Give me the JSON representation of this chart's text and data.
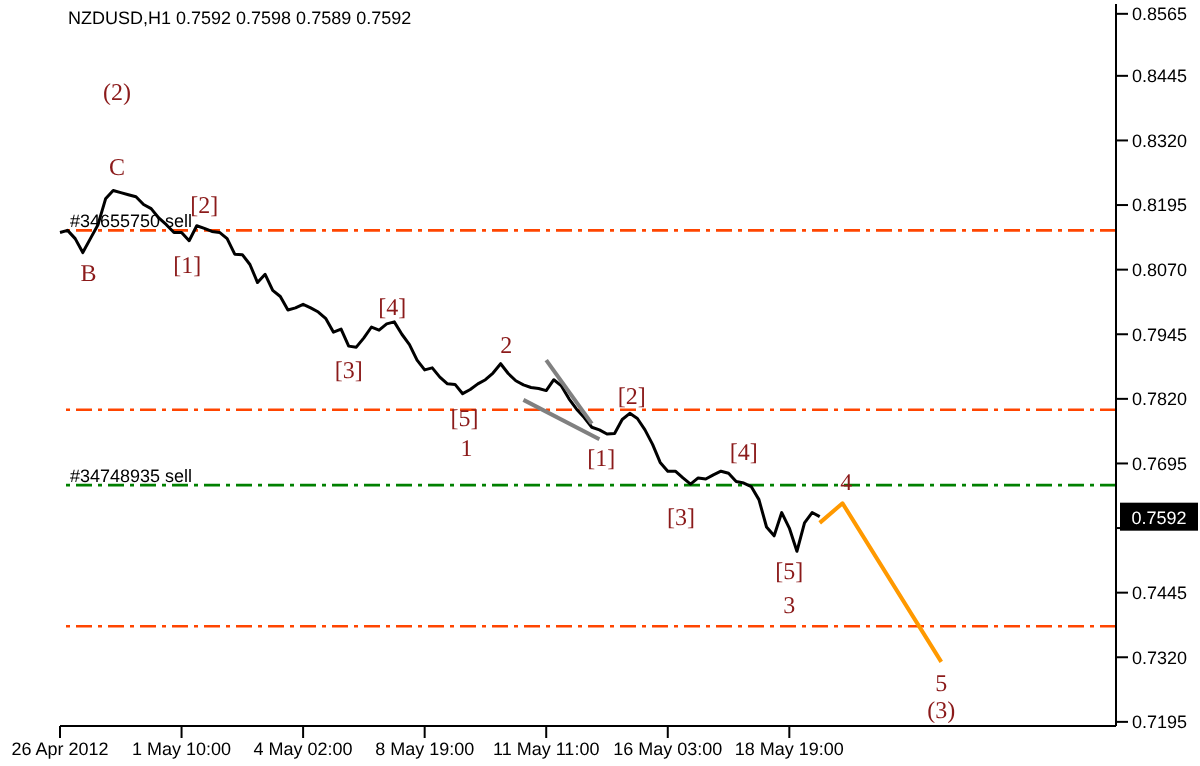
{
  "chart_data": {
    "type": "line",
    "title": "NZDUSD,H1  0.7592 0.7598 0.7589 0.7592",
    "marker": "none",
    "categories": [
      "26 Apr 2012",
      null,
      null,
      null,
      null,
      null,
      null,
      null,
      null,
      null,
      null,
      null,
      null,
      null,
      null,
      null,
      "1 May 10:00",
      null,
      null,
      null,
      null,
      null,
      null,
      null,
      null,
      null,
      null,
      null,
      null,
      null,
      null,
      null,
      "4 May 02:00",
      null,
      null,
      null,
      null,
      null,
      null,
      null,
      null,
      null,
      null,
      null,
      null,
      null,
      null,
      null,
      "8 May 19:00",
      null,
      null,
      null,
      null,
      null,
      null,
      null,
      null,
      null,
      null,
      null,
      null,
      null,
      null,
      null,
      "11 May 11:00",
      null,
      null,
      null,
      null,
      null,
      null,
      null,
      null,
      null,
      null,
      null,
      null,
      null,
      null,
      null,
      "16 May 03:00",
      null,
      null,
      null,
      null,
      null,
      null,
      null,
      null,
      null,
      null,
      null,
      null,
      null,
      null,
      null,
      "18 May 19:00",
      null,
      null,
      null,
      null,
      null,
      null,
      null,
      null,
      null,
      null,
      null,
      null,
      null,
      null,
      null,
      null,
      null,
      null,
      null,
      null,
      null,
      null,
      null,
      null,
      null,
      null,
      null,
      null,
      null,
      null,
      null,
      null,
      null,
      null,
      null,
      null,
      null,
      null,
      null,
      null,
      null,
      null,
      null
    ],
    "ylim": [
      0.7187,
      0.8584
    ],
    "yticks": [
      {
        "value": 0.8565,
        "label": "0.8565"
      },
      {
        "value": 0.8445,
        "label": "0.8445"
      },
      {
        "value": 0.832,
        "label": "0.8320"
      },
      {
        "value": 0.8195,
        "label": "0.8195"
      },
      {
        "value": 0.807,
        "label": "0.8070"
      },
      {
        "value": 0.7945,
        "label": "0.7945"
      },
      {
        "value": 0.782,
        "label": "0.7820"
      },
      {
        "value": 0.7695,
        "label": "0.7695"
      },
      {
        "value": 0.757,
        "label": null
      },
      {
        "value": 0.7445,
        "label": "0.7445"
      },
      {
        "value": 0.732,
        "label": "0.7320"
      },
      {
        "value": 0.7195,
        "label": "0.7195"
      }
    ],
    "series": [
      {
        "color": "#000000",
        "values": [
          0.8142,
          0.8146,
          0.813,
          0.8103,
          0.813,
          0.8157,
          0.8207,
          0.8223,
          0.8219,
          0.8215,
          0.8211,
          0.8196,
          0.8188,
          0.817,
          0.8157,
          0.8142,
          0.8142,
          0.8126,
          0.8155,
          0.815,
          0.8144,
          0.8142,
          0.813,
          0.81,
          0.8099,
          0.808,
          0.8045,
          0.8061,
          0.803,
          0.8018,
          0.7992,
          0.7996,
          0.8003,
          0.7996,
          0.7988,
          0.7975,
          0.7949,
          0.7955,
          0.7922,
          0.792,
          0.7938,
          0.7959,
          0.7953,
          0.7965,
          0.7969,
          0.7945,
          0.7925,
          0.7895,
          0.7876,
          0.788,
          0.7862,
          0.7849,
          0.7848,
          0.783,
          0.7838,
          0.7849,
          0.7857,
          0.787,
          0.7888,
          0.7869,
          0.7855,
          0.7847,
          0.7842,
          0.784,
          0.7836,
          0.7857,
          0.7845,
          0.782,
          0.78,
          0.7784,
          0.7765,
          0.776,
          0.7752,
          0.7753,
          0.778,
          0.7792,
          0.7782,
          0.776,
          0.7732,
          0.7697,
          0.768,
          0.768,
          0.7667,
          0.7655,
          0.7667,
          0.7665,
          0.7673,
          0.768,
          0.7676,
          0.766,
          0.7657,
          0.765,
          0.7625,
          0.7572,
          0.7555,
          0.76,
          0.757,
          0.7525,
          0.758,
          0.76,
          0.7592,
          null,
          null,
          null,
          null,
          null,
          null,
          null,
          null,
          null,
          null,
          null,
          null,
          null,
          null,
          null,
          null,
          null,
          null,
          null,
          null,
          null,
          null,
          null,
          null,
          null,
          null,
          null,
          null,
          null,
          null,
          null,
          null,
          null,
          null,
          null,
          null,
          null,
          null,
          null
        ]
      },
      {
        "color": "#808080",
        "values": [
          null,
          null,
          null,
          null,
          null,
          null,
          null,
          null,
          null,
          null,
          null,
          null,
          null,
          null,
          null,
          null,
          null,
          null,
          null,
          null,
          null,
          null,
          null,
          null,
          null,
          null,
          null,
          null,
          null,
          null,
          null,
          null,
          null,
          null,
          null,
          null,
          null,
          null,
          null,
          null,
          null,
          null,
          null,
          null,
          null,
          null,
          null,
          null,
          null,
          null,
          null,
          null,
          null,
          null,
          null,
          null,
          null,
          null,
          null,
          null,
          null,
          null,
          null,
          null,
          0.7895,
          null,
          null,
          null,
          null,
          null,
          0.7772,
          null,
          null,
          null,
          null,
          null,
          null,
          null,
          null,
          null,
          null,
          null,
          null,
          null,
          null,
          null,
          null,
          null,
          null,
          null,
          null,
          null,
          null,
          null,
          null,
          null,
          null,
          null,
          null,
          null,
          null,
          null,
          null,
          null,
          null,
          null,
          null,
          null,
          null,
          null,
          null,
          null,
          null,
          null,
          null,
          null,
          null,
          null,
          null,
          null,
          null,
          null,
          null,
          null,
          null,
          null,
          null,
          null,
          null,
          null,
          null,
          null,
          null,
          null,
          null,
          null,
          null,
          null,
          null,
          null
        ]
      },
      {
        "color": "#808080",
        "values": [
          null,
          null,
          null,
          null,
          null,
          null,
          null,
          null,
          null,
          null,
          null,
          null,
          null,
          null,
          null,
          null,
          null,
          null,
          null,
          null,
          null,
          null,
          null,
          null,
          null,
          null,
          null,
          null,
          null,
          null,
          null,
          null,
          null,
          null,
          null,
          null,
          null,
          null,
          null,
          null,
          null,
          null,
          null,
          null,
          null,
          null,
          null,
          null,
          null,
          null,
          null,
          null,
          null,
          null,
          null,
          null,
          null,
          null,
          null,
          null,
          null,
          0.7818,
          null,
          null,
          null,
          null,
          null,
          null,
          null,
          null,
          null,
          0.7742,
          null,
          null,
          null,
          null,
          null,
          null,
          null,
          null,
          null,
          null,
          null,
          null,
          null,
          null,
          null,
          null,
          null,
          null,
          null,
          null,
          null,
          null,
          null,
          null,
          null,
          null,
          null,
          null,
          null,
          null,
          null,
          null,
          null,
          null,
          null,
          null,
          null,
          null,
          null,
          null,
          null,
          null,
          null,
          null,
          null,
          null,
          null,
          null,
          null,
          null,
          null,
          null,
          null,
          null,
          null,
          null,
          null,
          null,
          null,
          null,
          null,
          null,
          null,
          null,
          null,
          null,
          null,
          null
        ]
      },
      {
        "color": "#ff9900",
        "values": [
          null,
          null,
          null,
          null,
          null,
          null,
          null,
          null,
          null,
          null,
          null,
          null,
          null,
          null,
          null,
          null,
          null,
          null,
          null,
          null,
          null,
          null,
          null,
          null,
          null,
          null,
          null,
          null,
          null,
          null,
          null,
          null,
          null,
          null,
          null,
          null,
          null,
          null,
          null,
          null,
          null,
          null,
          null,
          null,
          null,
          null,
          null,
          null,
          null,
          null,
          null,
          null,
          null,
          null,
          null,
          null,
          null,
          null,
          null,
          null,
          null,
          null,
          null,
          null,
          null,
          null,
          null,
          null,
          null,
          null,
          null,
          null,
          null,
          null,
          null,
          null,
          null,
          null,
          null,
          null,
          null,
          null,
          null,
          null,
          null,
          null,
          null,
          null,
          null,
          null,
          null,
          null,
          null,
          null,
          null,
          null,
          null,
          null,
          null,
          null,
          0.758,
          null,
          null,
          0.7618,
          null,
          null,
          null,
          null,
          null,
          null,
          null,
          null,
          null,
          null,
          null,
          null,
          0.7311,
          null,
          null,
          null,
          null,
          null,
          null,
          null,
          null,
          null,
          null,
          null,
          null,
          null,
          null,
          null,
          null,
          null,
          null,
          null,
          null,
          null,
          null,
          null
        ]
      }
    ],
    "ref_lines": [
      {
        "axis": "y",
        "value": 0.8146,
        "label": "#34655750 sell",
        "color": "#ff4500",
        "line_style": "dashed"
      },
      {
        "axis": "y",
        "value": 0.7799,
        "color": "#ff4500",
        "line_style": "dashed"
      },
      {
        "axis": "y",
        "value": 0.7653,
        "label": "#34748935 sell",
        "color": "#008000",
        "line_style": "dashed"
      },
      {
        "axis": "y",
        "value": 0.738,
        "color": "#ff4500",
        "line_style": "dashed"
      }
    ],
    "annotations": [
      "(2)",
      "C",
      "B",
      "[2]",
      "[1]",
      "[4]",
      "[3]",
      "2",
      "[5]",
      "1",
      "[1]",
      "[2]",
      "[4]",
      "[3]",
      "[5]",
      "3",
      "4",
      "5",
      "(3)",
      "0.7592"
    ]
  }
}
